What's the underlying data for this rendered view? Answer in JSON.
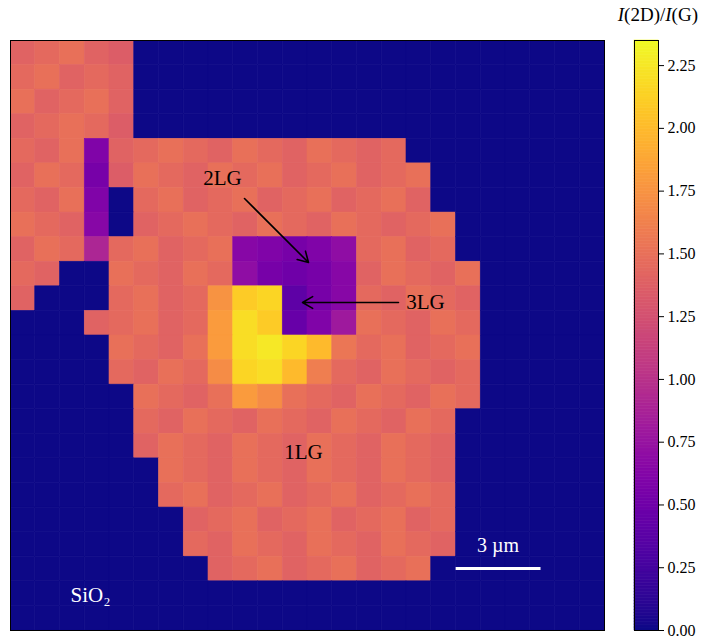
{
  "chart_data": {
    "type": "heatmap",
    "color": "plasma",
    "tick_labels": false,
    "xlim": [
      0,
      21
    ],
    "ylim": [
      0,
      21
    ],
    "annotations": [
      "2LG",
      "3LG",
      "1LG",
      "SiO₂"
    ],
    "scale_bar": {
      "length": 3,
      "label": "3 µm"
    },
    "colorbar": {
      "label": "I(2D)/I(G)",
      "range": [
        0,
        2.35
      ],
      "ticks": [
        {
          "value": 0,
          "label": "0.00"
        },
        0.25,
        {
          "value": 0.5,
          "label": "0.50"
        },
        0.75,
        {
          "value": 1,
          "label": "1.00"
        },
        1.25,
        {
          "value": 1.5,
          "label": "1.50"
        },
        1.75,
        {
          "value": 2,
          "label": "2.00"
        },
        2.25
      ]
    },
    "cells": [
      [
        1.4,
        1.45,
        1.5,
        1.4,
        1.35,
        0,
        0,
        0,
        0,
        0,
        0,
        0,
        0,
        0,
        0,
        0,
        0,
        0,
        0,
        0,
        0,
        0,
        0,
        0
      ],
      [
        1.45,
        1.5,
        1.4,
        1.45,
        1.4,
        0,
        0,
        0,
        0,
        0,
        0,
        0,
        0,
        0,
        0,
        0,
        0,
        0,
        0,
        0,
        0,
        0,
        0,
        0
      ],
      [
        1.5,
        1.4,
        1.45,
        1.5,
        1.4,
        0,
        0,
        0,
        0,
        0,
        0,
        0,
        0,
        0,
        0,
        0,
        0,
        0,
        0,
        0,
        0,
        0,
        0,
        0
      ],
      [
        1.4,
        1.45,
        1.5,
        1.45,
        1.35,
        0,
        0,
        0,
        0,
        0,
        0,
        0,
        0,
        0,
        0,
        0,
        0,
        0,
        0,
        0,
        0,
        0,
        0,
        0
      ],
      [
        1.45,
        1.4,
        1.5,
        0.6,
        1.4,
        1.45,
        1.5,
        1.45,
        1.4,
        1.5,
        1.45,
        1.4,
        1.5,
        1.45,
        1.4,
        1.45,
        0,
        0,
        0,
        0,
        0,
        0,
        0,
        0
      ],
      [
        1.4,
        1.5,
        1.45,
        0.55,
        1.35,
        1.5,
        1.45,
        1.4,
        1.5,
        1.45,
        1.5,
        1.4,
        1.45,
        1.5,
        1.4,
        1.45,
        1.5,
        0,
        0,
        0,
        0,
        0,
        0,
        0
      ],
      [
        1.45,
        1.4,
        1.5,
        0.6,
        0,
        1.45,
        1.5,
        1.4,
        1.45,
        1.5,
        1.4,
        1.45,
        1.5,
        1.4,
        1.45,
        1.5,
        1.4,
        0,
        0,
        0,
        0,
        0,
        0,
        0
      ],
      [
        1.5,
        1.45,
        1.4,
        0.65,
        0,
        1.4,
        1.45,
        1.5,
        1.45,
        1.4,
        1.5,
        1.45,
        1.4,
        1.5,
        1.45,
        1.4,
        1.45,
        1.5,
        0,
        0,
        0,
        0,
        0,
        0
      ],
      [
        1.4,
        1.5,
        1.45,
        0.9,
        1.45,
        1.5,
        1.4,
        1.45,
        1.5,
        0.65,
        0.6,
        0.55,
        0.6,
        0.7,
        1.45,
        1.5,
        1.4,
        1.45,
        0,
        0,
        0,
        0,
        0,
        0
      ],
      [
        1.45,
        1.4,
        0,
        0,
        1.5,
        1.45,
        1.4,
        1.5,
        1.45,
        0.7,
        0.55,
        0.5,
        0.55,
        0.65,
        1.4,
        1.5,
        1.45,
        1.4,
        1.5,
        0,
        0,
        0,
        0,
        0
      ],
      [
        1.4,
        0,
        0,
        0,
        1.45,
        1.5,
        1.4,
        1.45,
        1.75,
        2.1,
        2.15,
        0.4,
        0.55,
        0.65,
        1.45,
        1.4,
        1.5,
        1.45,
        1.4,
        0,
        0,
        0,
        0,
        0
      ],
      [
        0,
        0,
        0,
        1.4,
        1.45,
        1.5,
        1.4,
        1.45,
        1.8,
        2.2,
        2.1,
        0.45,
        0.6,
        0.8,
        1.5,
        1.45,
        1.4,
        1.5,
        1.45,
        0,
        0,
        0,
        0,
        0
      ],
      [
        0,
        0,
        0,
        0,
        1.5,
        1.45,
        1.4,
        1.5,
        1.8,
        2.2,
        2.25,
        2.15,
        2.0,
        1.55,
        1.45,
        1.5,
        1.4,
        1.45,
        1.5,
        0,
        0,
        0,
        0,
        0
      ],
      [
        0,
        0,
        0,
        0,
        1.45,
        1.4,
        1.5,
        1.45,
        1.7,
        2.15,
        2.2,
        2.0,
        1.6,
        1.45,
        1.4,
        1.5,
        1.45,
        1.4,
        1.45,
        0,
        0,
        0,
        0,
        0
      ],
      [
        0,
        0,
        0,
        0,
        0,
        1.5,
        1.45,
        1.4,
        1.5,
        1.8,
        1.7,
        1.5,
        1.45,
        1.4,
        1.5,
        1.45,
        1.4,
        1.5,
        1.45,
        0,
        0,
        0,
        0,
        0
      ],
      [
        0,
        0,
        0,
        0,
        0,
        1.45,
        1.4,
        1.5,
        1.45,
        1.4,
        1.5,
        1.45,
        1.4,
        1.5,
        1.45,
        1.4,
        1.5,
        1.45,
        0,
        0,
        0,
        0,
        0,
        0
      ],
      [
        0,
        0,
        0,
        0,
        0,
        1.4,
        1.5,
        1.45,
        1.4,
        1.5,
        1.45,
        1.4,
        1.5,
        1.45,
        1.4,
        1.5,
        1.45,
        1.4,
        0,
        0,
        0,
        0,
        0,
        0
      ],
      [
        0,
        0,
        0,
        0,
        0,
        0,
        1.5,
        1.45,
        1.4,
        1.5,
        1.45,
        1.4,
        1.5,
        1.45,
        1.4,
        1.5,
        1.45,
        1.4,
        0,
        0,
        0,
        0,
        0,
        0
      ],
      [
        0,
        0,
        0,
        0,
        0,
        0,
        1.45,
        1.5,
        1.4,
        1.45,
        1.5,
        1.4,
        1.45,
        1.5,
        1.4,
        1.45,
        1.5,
        1.45,
        0,
        0,
        0,
        0,
        0,
        0
      ],
      [
        0,
        0,
        0,
        0,
        0,
        0,
        0,
        1.4,
        1.45,
        1.5,
        1.4,
        1.45,
        1.5,
        1.4,
        1.45,
        1.5,
        1.4,
        1.45,
        0,
        0,
        0,
        0,
        0,
        0
      ],
      [
        0,
        0,
        0,
        0,
        0,
        0,
        0,
        1.45,
        1.4,
        1.5,
        1.45,
        1.4,
        1.5,
        1.45,
        1.4,
        1.5,
        1.45,
        1.4,
        0,
        0,
        0,
        0,
        0,
        0
      ],
      [
        0,
        0,
        0,
        0,
        0,
        0,
        0,
        0,
        1.4,
        1.45,
        1.5,
        1.4,
        1.45,
        1.5,
        1.4,
        1.45,
        1.5,
        0,
        0,
        0,
        0,
        0,
        0,
        0
      ],
      [
        0,
        0,
        0,
        0,
        0,
        0,
        0,
        0,
        0,
        0,
        0,
        0,
        0,
        0,
        0,
        0,
        0,
        0,
        0,
        0,
        0,
        0,
        0,
        0
      ],
      [
        0,
        0,
        0,
        0,
        0,
        0,
        0,
        0,
        0,
        0,
        0,
        0,
        0,
        0,
        0,
        0,
        0,
        0,
        0,
        0,
        0,
        0,
        0,
        0
      ]
    ]
  }
}
